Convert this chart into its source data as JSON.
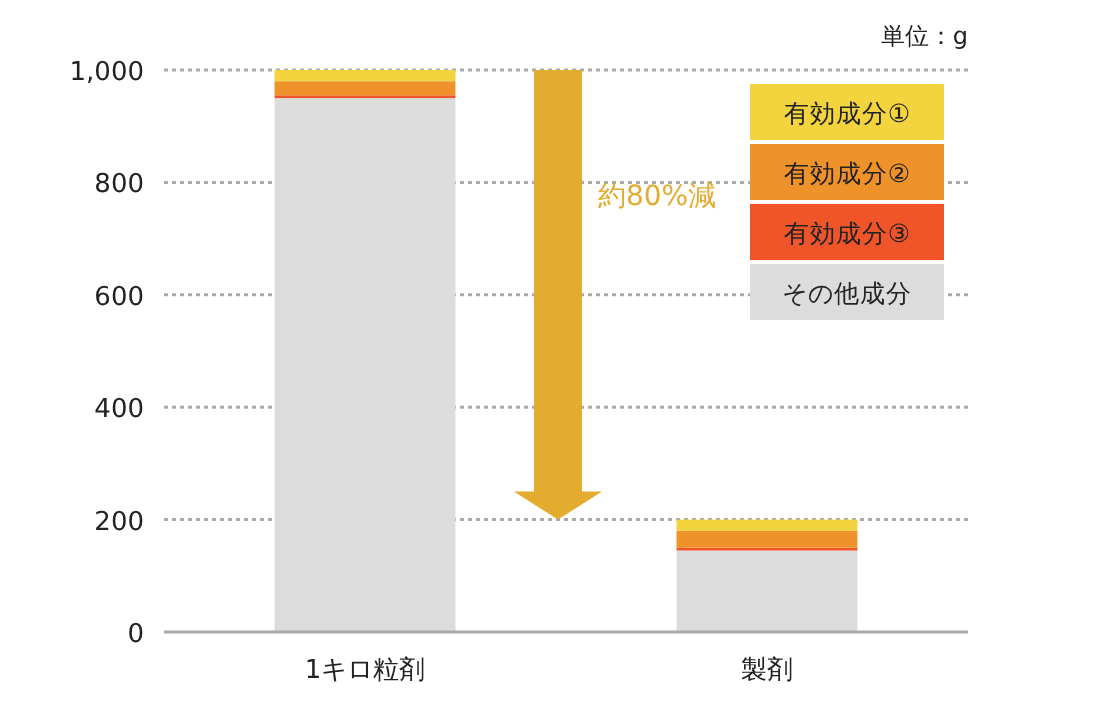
{
  "chart_data": {
    "type": "bar",
    "stacked": true,
    "categories": [
      "1キロ粒剤",
      "製剤"
    ],
    "series": [
      {
        "name": "その他成分",
        "color": "#dcdcdc",
        "values": [
          950,
          145
        ]
      },
      {
        "name": "有効成分③",
        "color": "#f0552a",
        "values": [
          5,
          5
        ]
      },
      {
        "name": "有効成分②",
        "color": "#f0922a",
        "values": [
          25,
          30
        ]
      },
      {
        "name": "有効成分①",
        "color": "#f3d33e",
        "values": [
          20,
          20
        ]
      }
    ],
    "ylim": [
      0,
      1000
    ],
    "yticks": [
      0,
      {
        "value": 200,
        "label": "200"
      },
      {
        "value": 400,
        "label": "400"
      },
      {
        "value": 600,
        "label": "600"
      },
      {
        "value": 800,
        "label": "800"
      },
      {
        "value": 1000,
        "label": "1,000"
      }
    ],
    "grid": "y",
    "legend": "top right",
    "annotations": [
      "単位：g",
      "約80%減"
    ]
  }
}
